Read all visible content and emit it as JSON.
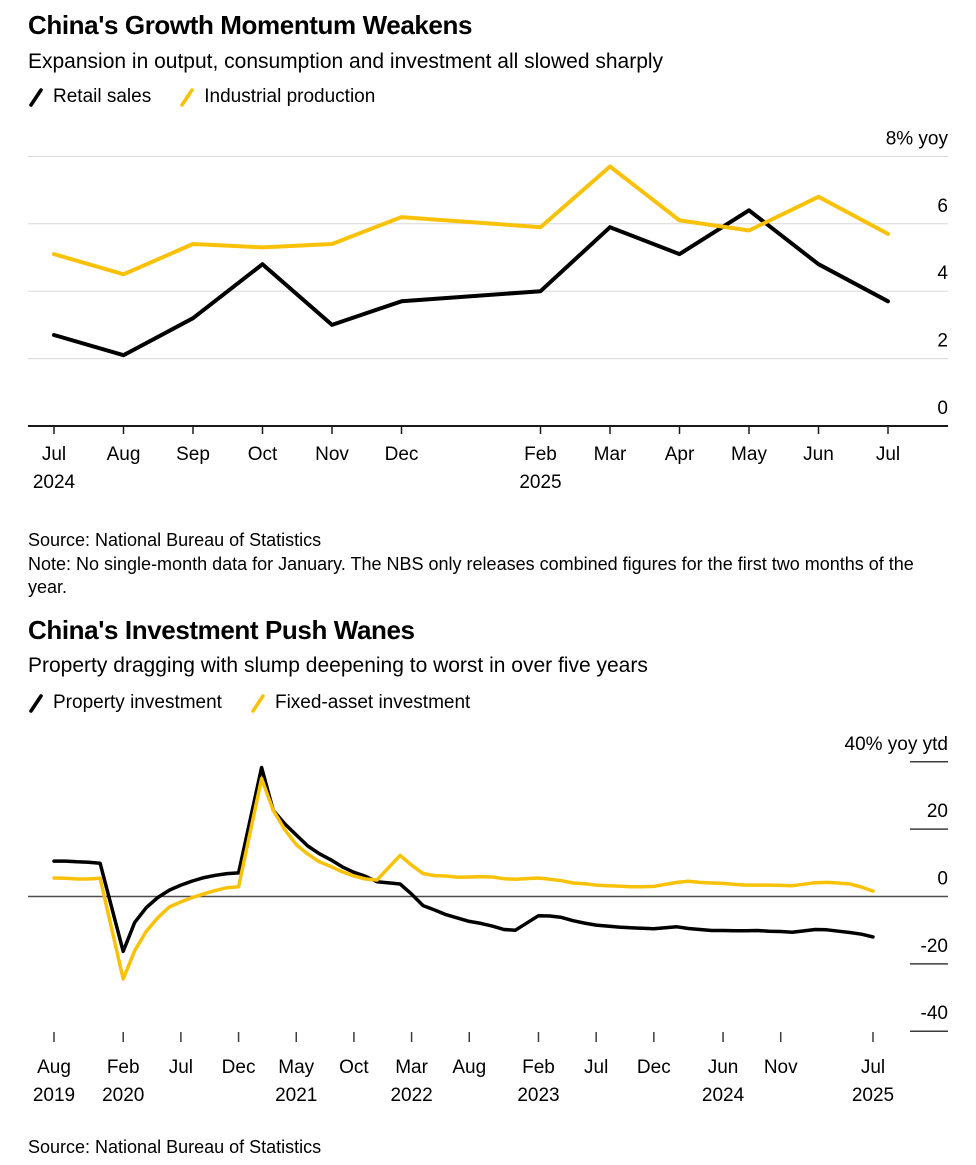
{
  "colors": {
    "background": "#ffffff",
    "black_series": "#000000",
    "yellow_series": "#F9C208",
    "gridline": "#d8d8d8",
    "axis": "#1a1a1a",
    "zero_line": "#4d4d4d",
    "tick_dash": "#3c3c3c"
  },
  "chart_data": [
    {
      "id": "growth-momentum",
      "type": "line",
      "title": "China's Growth Momentum Weakens",
      "subtitle": "Expansion in output, consumption and investment all slowed sharply",
      "unit_label": "8% yoy",
      "ylim": [
        0,
        8
      ],
      "grid": "horizontal-full",
      "legend_position": "top-left",
      "yticks": [
        {
          "value": 0,
          "label": "0"
        },
        {
          "value": 2,
          "label": "2"
        },
        {
          "value": 4,
          "label": "4"
        },
        {
          "value": 6,
          "label": "6"
        },
        {
          "value": 8,
          "label": "8% yoy"
        }
      ],
      "months": [
        "Jul 2024",
        "Aug 2024",
        "Sep 2024",
        "Oct 2024",
        "Nov 2024",
        "Dec 2024",
        "Feb 2025",
        "Mar 2025",
        "Apr 2025",
        "May 2025",
        "Jun 2025",
        "Jul 2025"
      ],
      "x_offsets": [
        0,
        1,
        2,
        3,
        4,
        5,
        7,
        8,
        9,
        10,
        11,
        12
      ],
      "xticks": [
        {
          "offset": 0,
          "label": "Jul",
          "year": "2024"
        },
        {
          "offset": 1,
          "label": "Aug"
        },
        {
          "offset": 2,
          "label": "Sep"
        },
        {
          "offset": 3,
          "label": "Oct"
        },
        {
          "offset": 4,
          "label": "Nov"
        },
        {
          "offset": 5,
          "label": "Dec"
        },
        {
          "offset": 7,
          "label": "Feb",
          "year": "2025"
        },
        {
          "offset": 8,
          "label": "Mar"
        },
        {
          "offset": 9,
          "label": "Apr"
        },
        {
          "offset": 10,
          "label": "May"
        },
        {
          "offset": 11,
          "label": "Jun"
        },
        {
          "offset": 12,
          "label": "Jul"
        }
      ],
      "series": [
        {
          "name": "Retail sales",
          "color": "#000000",
          "values": [
            2.7,
            2.1,
            3.2,
            4.8,
            3.0,
            3.7,
            4.0,
            5.9,
            5.1,
            6.4,
            4.8,
            3.7
          ]
        },
        {
          "name": "Industrial production",
          "color": "#F9C208",
          "values": [
            5.1,
            4.5,
            5.4,
            5.3,
            5.4,
            6.2,
            5.9,
            7.7,
            6.1,
            5.8,
            6.8,
            5.7
          ]
        }
      ],
      "source": "Source: National Bureau of Statistics",
      "note": "Note: No single-month data for January. The NBS only releases combined figures for the first two months of the year."
    },
    {
      "id": "investment-push",
      "type": "line",
      "title": "China's Investment Push Wanes",
      "subtitle": "Property dragging with slump deepening to worst in over five years",
      "unit_label": "40% yoy ytd",
      "ylim": [
        -40,
        40
      ],
      "grid": "right-edge-dashes",
      "legend_position": "top-left",
      "yticks": [
        {
          "value": -40,
          "label": "-40"
        },
        {
          "value": -20,
          "label": "-20"
        },
        {
          "value": 0,
          "label": "0"
        },
        {
          "value": 20,
          "label": "20"
        },
        {
          "value": 40,
          "label": "40% yoy ytd"
        }
      ],
      "months": [
        "Aug 2019",
        "Sep 2019",
        "Oct 2019",
        "Nov 2019",
        "Dec 2019",
        "Feb 2020",
        "Mar 2020",
        "Apr 2020",
        "May 2020",
        "Jun 2020",
        "Jul 2020",
        "Aug 2020",
        "Sep 2020",
        "Oct 2020",
        "Nov 2020",
        "Dec 2020",
        "Feb 2021",
        "Mar 2021",
        "Apr 2021",
        "May 2021",
        "Jun 2021",
        "Jul 2021",
        "Aug 2021",
        "Sep 2021",
        "Oct 2021",
        "Nov 2021",
        "Dec 2021",
        "Feb 2022",
        "Mar 2022",
        "Apr 2022",
        "May 2022",
        "Jun 2022",
        "Jul 2022",
        "Aug 2022",
        "Sep 2022",
        "Oct 2022",
        "Nov 2022",
        "Dec 2022",
        "Feb 2023",
        "Mar 2023",
        "Apr 2023",
        "May 2023",
        "Jun 2023",
        "Jul 2023",
        "Aug 2023",
        "Sep 2023",
        "Oct 2023",
        "Nov 2023",
        "Dec 2023",
        "Feb 2024",
        "Mar 2024",
        "Apr 2024",
        "May 2024",
        "Jun 2024",
        "Jul 2024",
        "Aug 2024",
        "Sep 2024",
        "Oct 2024",
        "Nov 2024",
        "Dec 2024",
        "Feb 2025",
        "Mar 2025",
        "Apr 2025",
        "May 2025",
        "Jun 2025",
        "Jul 2025"
      ],
      "x_offsets": [
        0,
        1,
        2,
        3,
        4,
        6,
        7,
        8,
        9,
        10,
        11,
        12,
        13,
        14,
        15,
        16,
        18,
        19,
        20,
        21,
        22,
        23,
        24,
        25,
        26,
        27,
        28,
        30,
        31,
        32,
        33,
        34,
        35,
        36,
        37,
        38,
        39,
        40,
        42,
        43,
        44,
        45,
        46,
        47,
        48,
        49,
        50,
        51,
        52,
        54,
        55,
        56,
        57,
        58,
        59,
        60,
        61,
        62,
        63,
        64,
        66,
        67,
        68,
        69,
        70,
        71
      ],
      "xticks": [
        {
          "offset": 0,
          "label": "Aug",
          "year": "2019"
        },
        {
          "offset": 6,
          "label": "Feb",
          "year": "2020"
        },
        {
          "offset": 11,
          "label": "Jul"
        },
        {
          "offset": 16,
          "label": "Dec"
        },
        {
          "offset": 21,
          "label": "May",
          "year": "2021"
        },
        {
          "offset": 26,
          "label": "Oct"
        },
        {
          "offset": 31,
          "label": "Mar",
          "year": "2022"
        },
        {
          "offset": 36,
          "label": "Aug"
        },
        {
          "offset": 42,
          "label": "Feb",
          "year": "2023"
        },
        {
          "offset": 47,
          "label": "Jul"
        },
        {
          "offset": 52,
          "label": "Dec"
        },
        {
          "offset": 58,
          "label": "Jun",
          "year": "2024"
        },
        {
          "offset": 63,
          "label": "Nov"
        },
        {
          "offset": 71,
          "label": "Jul",
          "year": "2025"
        }
      ],
      "series": [
        {
          "name": "Property investment",
          "color": "#000000",
          "values": [
            10.5,
            10.5,
            10.3,
            10.2,
            9.9,
            -16.3,
            -7.7,
            -3.3,
            -0.3,
            1.9,
            3.4,
            4.6,
            5.6,
            6.3,
            6.8,
            7.0,
            38.3,
            25.6,
            21.6,
            18.3,
            15.0,
            12.7,
            10.9,
            8.8,
            7.2,
            6.0,
            4.4,
            3.7,
            0.7,
            -2.7,
            -4.0,
            -5.4,
            -6.4,
            -7.4,
            -8.0,
            -8.8,
            -9.8,
            -10.0,
            -5.7,
            -5.8,
            -6.2,
            -7.2,
            -7.9,
            -8.5,
            -8.8,
            -9.1,
            -9.3,
            -9.4,
            -9.6,
            -9.0,
            -9.5,
            -9.8,
            -10.1,
            -10.1,
            -10.2,
            -10.2,
            -10.1,
            -10.3,
            -10.4,
            -10.6,
            -9.8,
            -9.9,
            -10.3,
            -10.7,
            -11.2,
            -12.0
          ]
        },
        {
          "name": "Fixed-asset investment",
          "color": "#F9C208",
          "values": [
            5.5,
            5.4,
            5.2,
            5.2,
            5.4,
            -24.5,
            -16.1,
            -10.3,
            -6.3,
            -3.1,
            -1.6,
            -0.3,
            0.8,
            1.8,
            2.6,
            2.9,
            35.0,
            25.6,
            19.9,
            15.4,
            12.6,
            10.3,
            8.9,
            7.3,
            6.1,
            5.2,
            4.9,
            12.2,
            9.3,
            6.8,
            6.2,
            6.1,
            5.7,
            5.8,
            5.9,
            5.8,
            5.3,
            5.1,
            5.5,
            5.1,
            4.7,
            4.0,
            3.8,
            3.4,
            3.2,
            3.1,
            2.9,
            2.9,
            3.0,
            4.2,
            4.5,
            4.2,
            4.0,
            3.9,
            3.6,
            3.4,
            3.4,
            3.4,
            3.3,
            3.2,
            4.1,
            4.2,
            4.0,
            3.7,
            2.8,
            1.6
          ]
        }
      ],
      "source": "Source: National Bureau of Statistics"
    }
  ]
}
